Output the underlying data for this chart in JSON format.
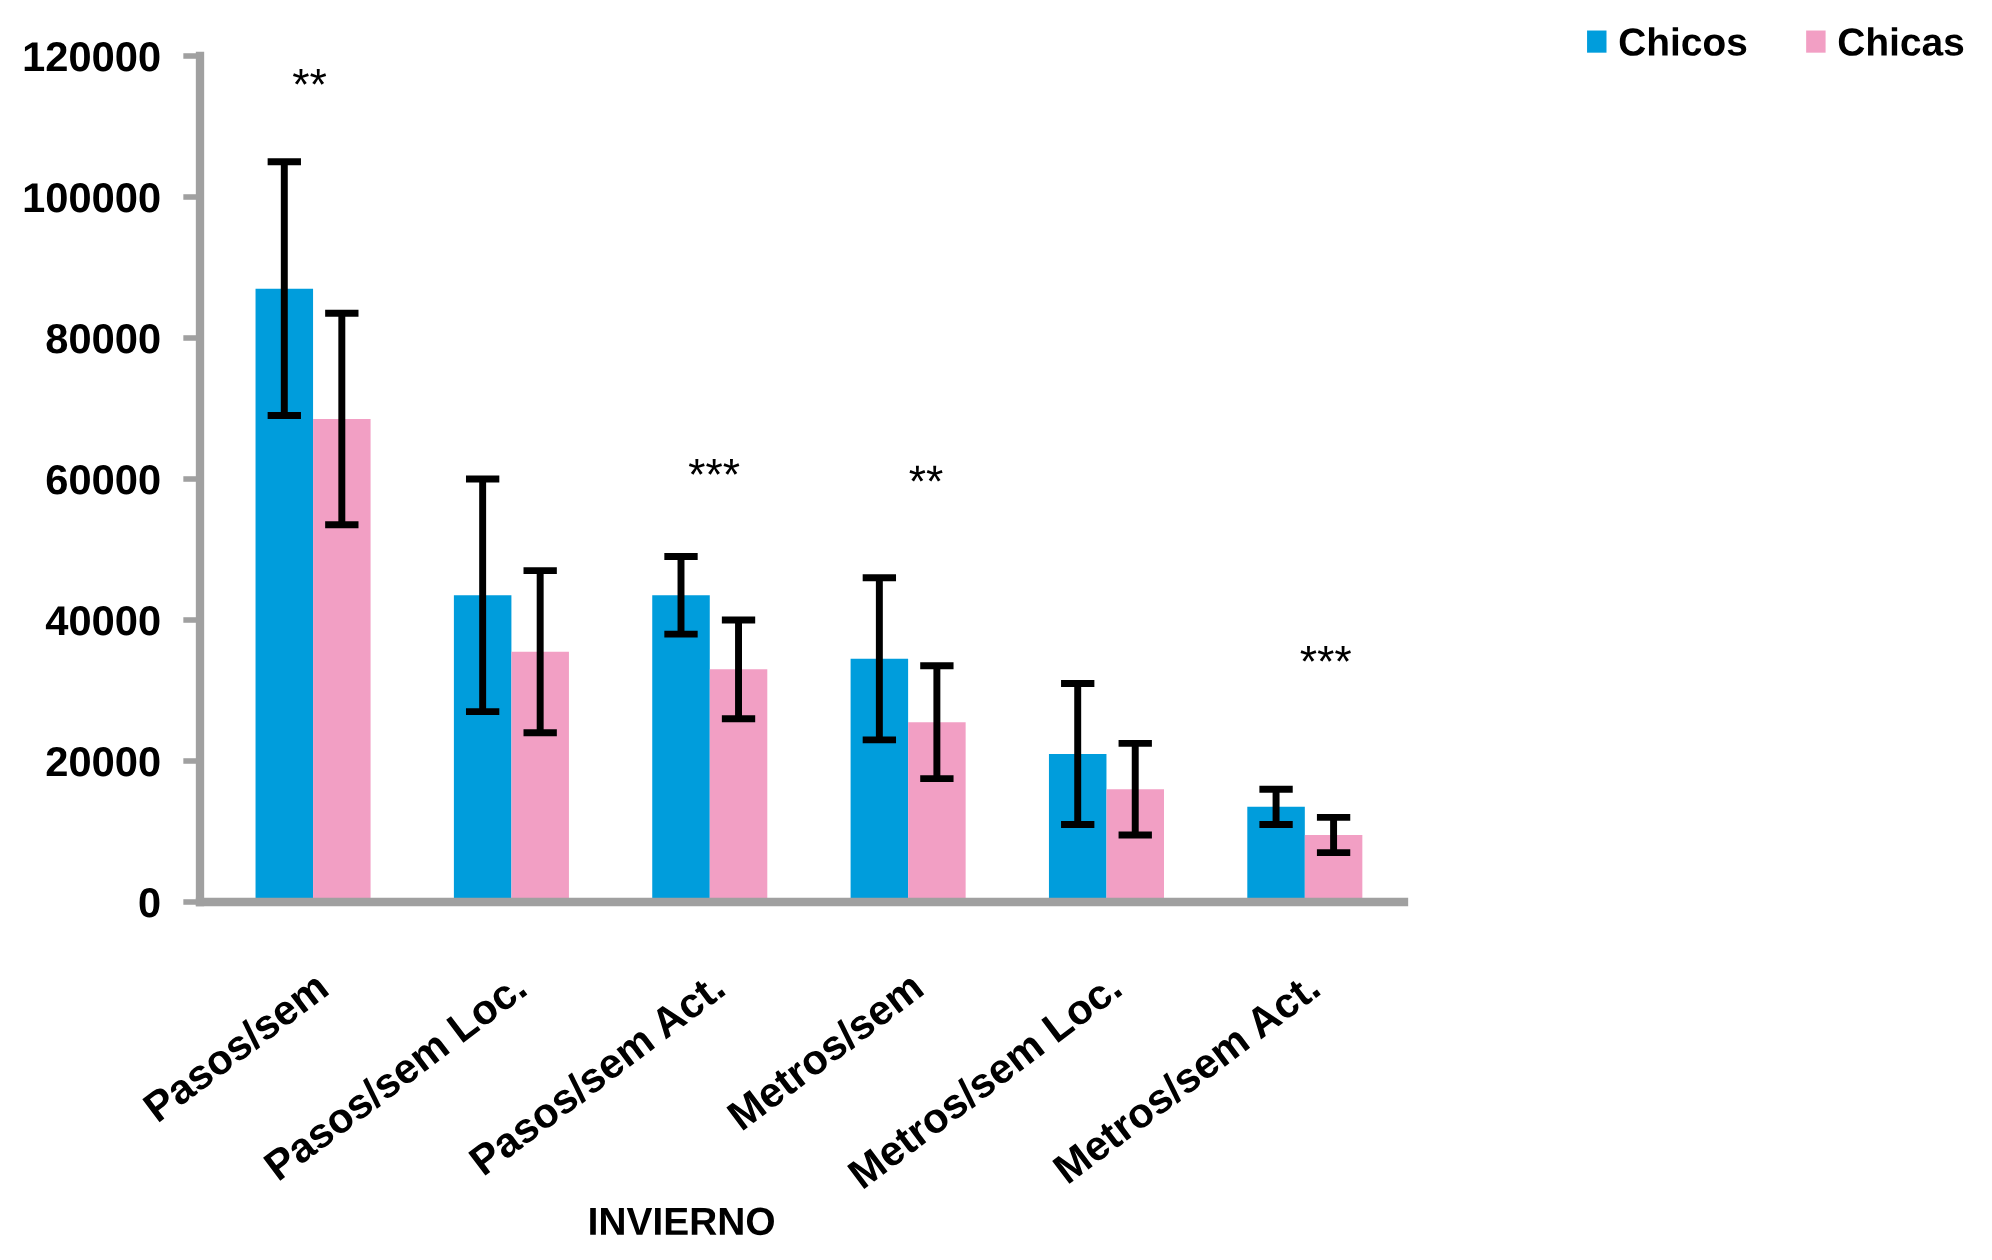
{
  "chart_data": {
    "type": "bar",
    "xlabel": "INVIERNO",
    "categories": [
      "Pasos/sem",
      "Pasos/sem Loc.",
      "Pasos/sem Act.",
      "Metros/sem",
      "Metros/sem Loc.",
      "Metros/sem Act."
    ],
    "series": [
      {
        "name": "Chicos",
        "color": "#009ddc",
        "values": [
          87000,
          43500,
          43500,
          34500,
          21000,
          13500
        ],
        "errors": [
          18000,
          16500,
          5500,
          11500,
          10000,
          2500
        ]
      },
      {
        "name": "Chicas",
        "color": "#f29fc4",
        "values": [
          68500,
          35500,
          33000,
          25500,
          16000,
          9500
        ],
        "errors": [
          15000,
          11500,
          7000,
          8000,
          6500,
          2500
        ]
      }
    ],
    "ylim": [
      0,
      120000
    ],
    "yticks": [
      0,
      20000,
      40000,
      60000,
      80000,
      100000,
      120000
    ],
    "grid": false,
    "legend": "top right",
    "annotations": [
      "**",
      "***",
      "**",
      "***"
    ]
  }
}
